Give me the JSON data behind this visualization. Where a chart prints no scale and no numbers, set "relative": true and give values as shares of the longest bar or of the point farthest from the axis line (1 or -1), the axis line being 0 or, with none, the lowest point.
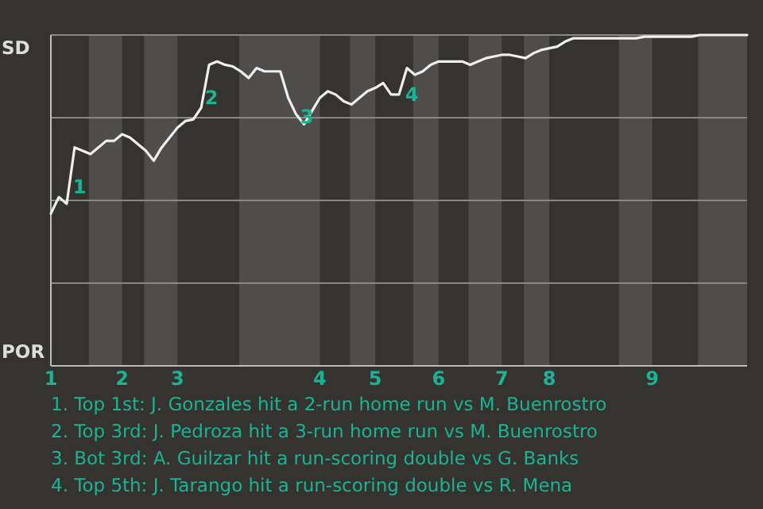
{
  "chart_data": {
    "type": "line",
    "relative": true,
    "categories": [
      "1",
      null,
      null,
      null,
      null,
      null,
      null,
      null,
      null,
      "2",
      null,
      null,
      null,
      null,
      null,
      null,
      "3",
      null,
      null,
      null,
      null,
      null,
      null,
      null,
      null,
      null,
      null,
      null,
      null,
      null,
      null,
      null,
      null,
      null,
      "4",
      null,
      null,
      null,
      null,
      null,
      null,
      "5",
      null,
      null,
      null,
      null,
      null,
      null,
      null,
      "6",
      null,
      null,
      null,
      null,
      null,
      null,
      null,
      "7",
      null,
      null,
      null,
      null,
      null,
      "8",
      null,
      null,
      null,
      null,
      null,
      null,
      null,
      null,
      null,
      null,
      null,
      null,
      "9",
      null,
      null,
      null,
      null,
      null,
      null,
      null,
      null,
      null,
      null,
      null,
      null
    ],
    "marker": "none",
    "line_style": "solid",
    "series": [
      {
        "color": "#eeeeee",
        "values": [
          0.46,
          0.51,
          0.49,
          0.66,
          0.65,
          0.64,
          0.66,
          0.68,
          0.68,
          0.7,
          0.69,
          0.67,
          0.65,
          0.62,
          0.66,
          0.69,
          0.72,
          0.74,
          0.745,
          0.78,
          0.91,
          0.92,
          0.91,
          0.905,
          0.89,
          0.87,
          0.9,
          0.89,
          0.89,
          0.89,
          0.81,
          0.76,
          0.73,
          0.77,
          0.81,
          0.83,
          0.82,
          0.8,
          0.79,
          0.81,
          0.83,
          0.84,
          0.855,
          0.82,
          0.82,
          0.9,
          0.88,
          0.89,
          0.91,
          0.92,
          0.92,
          0.92,
          0.92,
          0.91,
          0.92,
          0.93,
          0.935,
          0.94,
          0.94,
          0.935,
          0.93,
          0.945,
          0.955,
          0.96,
          0.965,
          0.98,
          0.99,
          0.99,
          0.99,
          0.99,
          0.99,
          0.99,
          0.99,
          0.99,
          0.99,
          0.995,
          0.995,
          0.995,
          0.995,
          0.995,
          0.995,
          0.995,
          1,
          1,
          1,
          1,
          1,
          1,
          1
        ]
      }
    ],
    "ref_lines": [
      {
        "axis": "y",
        "value": 0.25,
        "color": "#8a8886"
      },
      {
        "axis": "y",
        "value": 0.5,
        "color": "#8a8886"
      },
      {
        "axis": "y",
        "value": 0.75,
        "color": "#8a8886"
      },
      {
        "axis": "y",
        "value": 1,
        "color": "#8a8886"
      }
    ],
    "annotations": [
      "SD",
      "POR",
      "1",
      "2",
      "3",
      "4",
      "1. Top 1st: J. Gonzales hit a 2-run home run vs M. Buenrostro",
      "2. Top 3rd: J. Pedroza hit a 3-run home run vs M. Buenrostro",
      "3. Bot 3rd: A. Guilzar hit a run-scoring double vs G. Banks",
      "4. Top 5th: J. Tarango hit a run-scoring double vs R. Mena"
    ]
  }
}
